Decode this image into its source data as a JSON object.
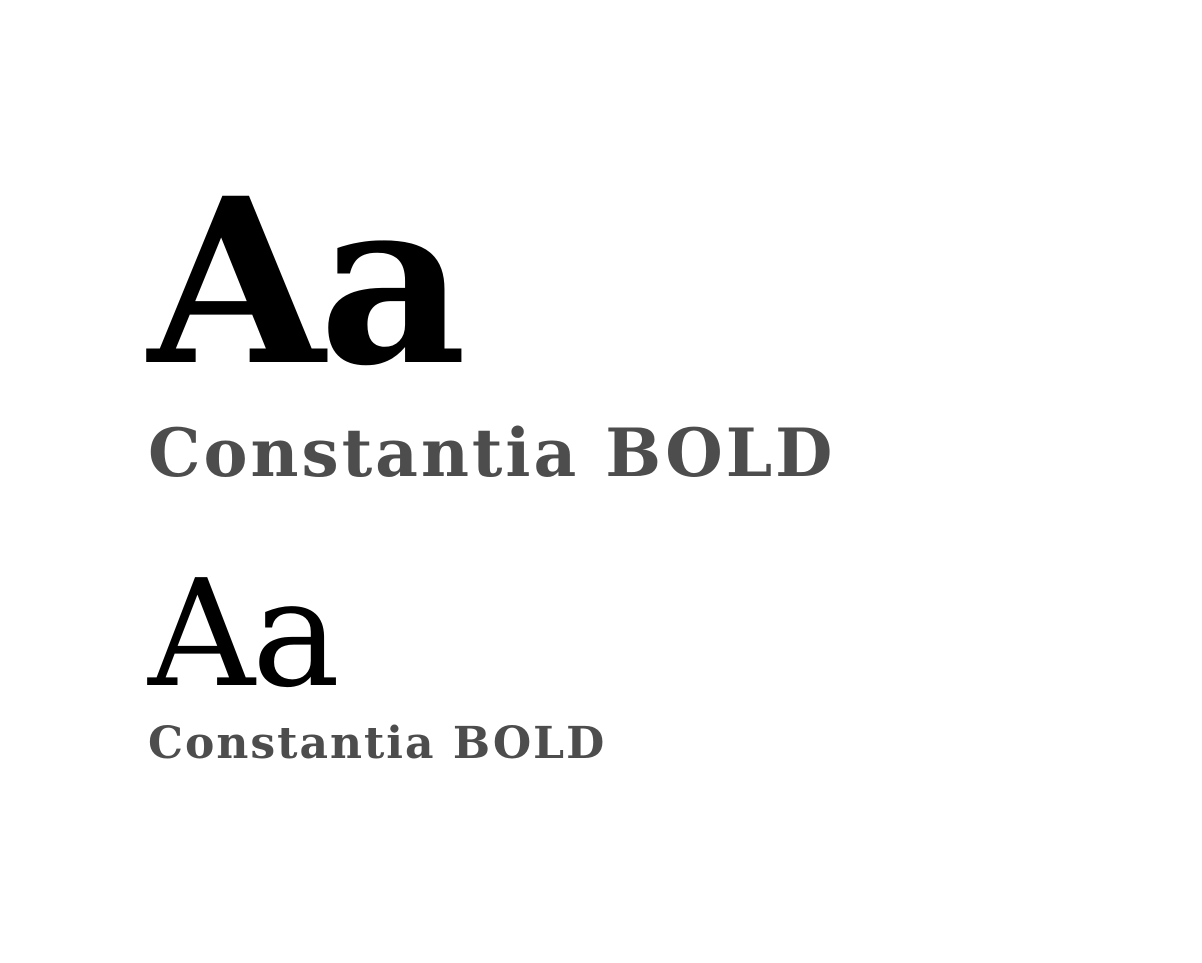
{
  "specimens": [
    {
      "glyphs": "Aa",
      "label": "Constantia BOLD"
    },
    {
      "glyphs": "Aa",
      "label": "Constantia BOLD"
    }
  ],
  "colors": {
    "background": "#ffffff",
    "glyphs": "#000000",
    "label": "#4d4d4d"
  }
}
